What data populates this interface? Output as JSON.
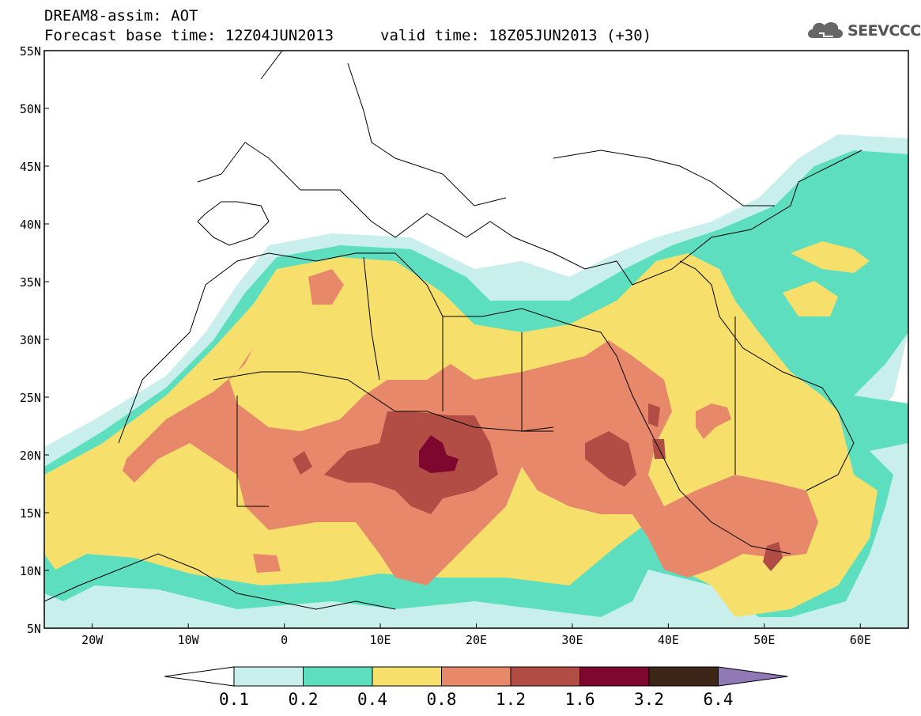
{
  "header": {
    "line1": "DREAM8-assim: AOT",
    "line2": "Forecast base time: 12Z04JUN2013",
    "line3": "valid time: 18Z05JUN2013 (+30)",
    "logo": "SEEVCCC"
  },
  "map": {
    "lat_labels": [
      "55N",
      "50N",
      "45N",
      "40N",
      "35N",
      "30N",
      "25N",
      "20N",
      "15N",
      "10N",
      "5N"
    ],
    "lon_labels": [
      "20W",
      "10W",
      "0",
      "10E",
      "20E",
      "30E",
      "40E",
      "50E",
      "60E"
    ],
    "lon_range": [
      -25,
      65
    ],
    "lat_range": [
      5,
      55
    ]
  },
  "colorbar": {
    "ticks": [
      "0.1",
      "0.2",
      "0.4",
      "0.8",
      "1.2",
      "1.6",
      "3.2",
      "6.4"
    ],
    "colors": [
      "#ffffff",
      "#c8efec",
      "#5ddfbf",
      "#f6e06b",
      "#e8886a",
      "#b24d45",
      "#7e0730",
      "#3d2618",
      "#9179b5"
    ]
  }
}
